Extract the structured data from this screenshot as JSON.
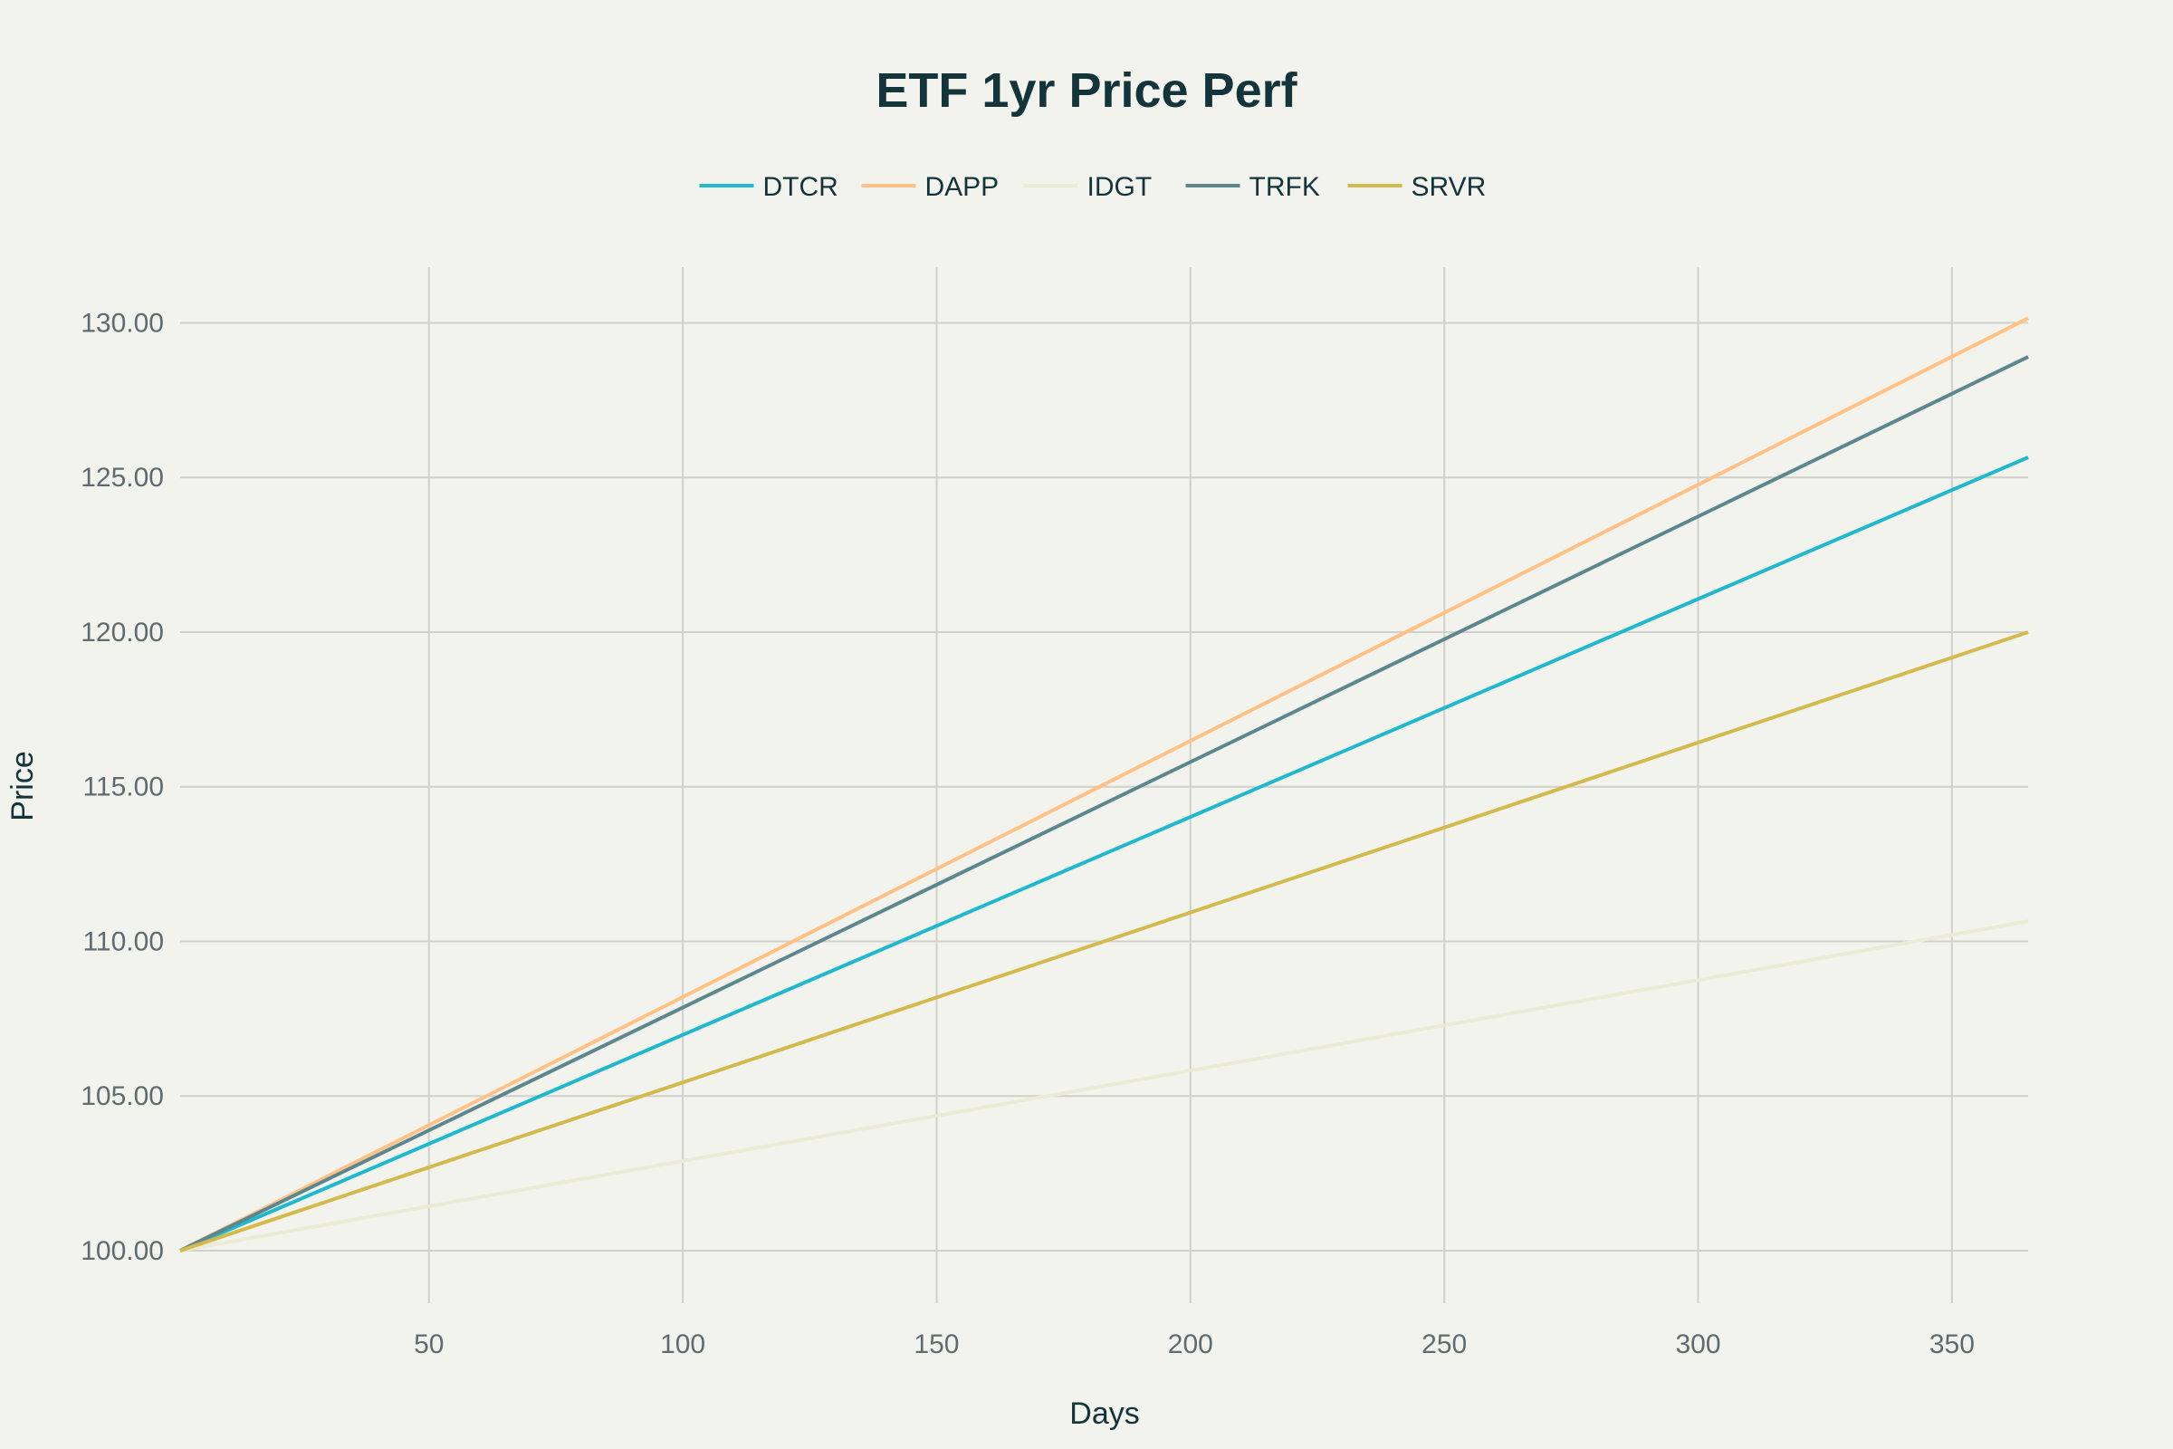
{
  "chart_data": {
    "type": "line",
    "title": "ETF 1yr Price Perf",
    "xlabel": "Days",
    "ylabel": "Price",
    "xlim": [
      1,
      365
    ],
    "ylim": [
      98.3,
      131.8
    ],
    "xticks": [
      50,
      100,
      150,
      200,
      250,
      300,
      350
    ],
    "yticks": [
      100,
      105,
      110,
      115,
      120,
      125,
      130
    ],
    "ytick_format": "2 decimals",
    "grid": true,
    "legend_placement": "top-center",
    "series": [
      {
        "name": "DTCR",
        "color": "#1fb8cd",
        "x": [
          1,
          365
        ],
        "y": [
          100,
          125.65
        ]
      },
      {
        "name": "DAPP",
        "color": "#ffc185",
        "x": [
          1,
          365
        ],
        "y": [
          100,
          130.15
        ]
      },
      {
        "name": "IDGT",
        "color": "#ecebd5",
        "x": [
          1,
          365
        ],
        "y": [
          100,
          110.65
        ]
      },
      {
        "name": "TRFK",
        "color": "#5d878f",
        "x": [
          1,
          365
        ],
        "y": [
          100,
          128.9
        ]
      },
      {
        "name": "SRVR",
        "color": "#d2ba4c",
        "x": [
          1,
          365
        ],
        "y": [
          100,
          120.0
        ]
      }
    ]
  }
}
